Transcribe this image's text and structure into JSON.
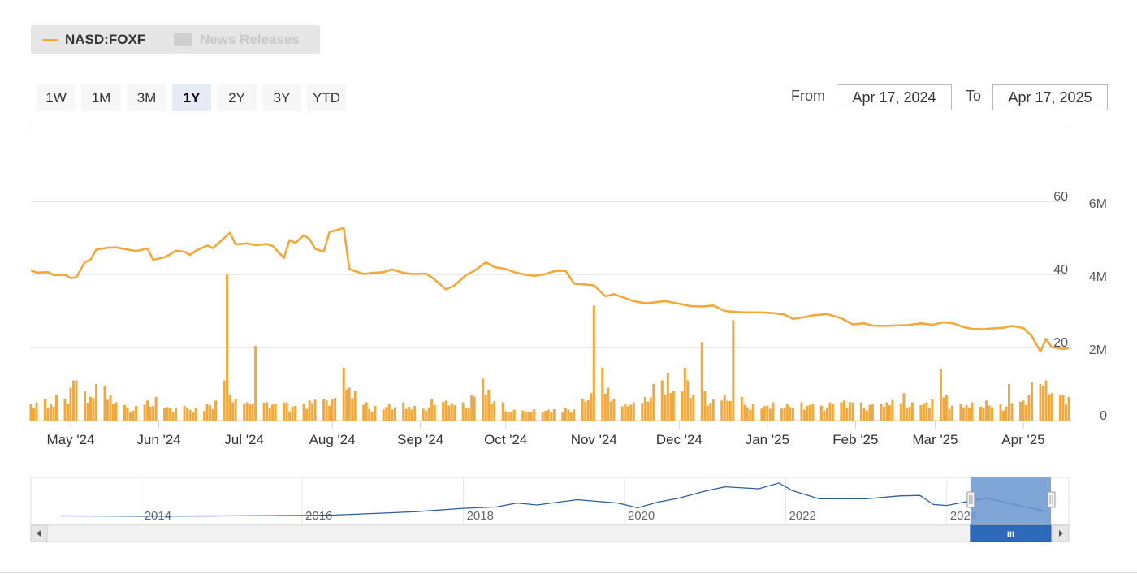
{
  "legend": {
    "series_label": "NASD:FOXF",
    "news_label": "News Releases",
    "series_color": "#f5a83a",
    "news_color": "#cccccc"
  },
  "range_selector": {
    "buttons": [
      "1W",
      "1M",
      "3M",
      "1Y",
      "2Y",
      "3Y",
      "YTD"
    ],
    "selected": "1Y",
    "from_label": "From",
    "to_label": "To",
    "from_value": "Apr 17, 2024",
    "to_value": "Apr 17, 2025"
  },
  "navigator": {
    "year_labels": [
      "2014",
      "2016",
      "2018",
      "2020",
      "2022",
      "2024"
    ],
    "handle_glyph": "III",
    "line_color": "#2c5e9e",
    "mask_color": "#6a96d0"
  },
  "chart_data": {
    "type": "line",
    "title": "",
    "series": [
      {
        "name": "NASD:FOXF",
        "type": "line",
        "axis": "price"
      },
      {
        "name": "Volume",
        "type": "bar",
        "axis": "volume"
      }
    ],
    "price_axis": {
      "ticks": [
        "20",
        "40",
        "60"
      ],
      "range": [
        0,
        60
      ]
    },
    "volume_axis": {
      "ticks": [
        "0",
        "2M",
        "4M",
        "6M"
      ],
      "range": [
        0,
        6000000
      ]
    },
    "x_ticks": [
      "May '24",
      "Jun '24",
      "Jul '24",
      "Aug '24",
      "Sep '24",
      "Oct '24",
      "Nov '24",
      "Dec '24",
      "Jan '25",
      "Feb '25",
      "Mar '25",
      "Apr '25"
    ],
    "price_points": [
      [
        "2024-04-17",
        41.1
      ],
      [
        "2024-04-19",
        40.5
      ],
      [
        "2024-04-23",
        40.6
      ],
      [
        "2024-04-25",
        39.8
      ],
      [
        "2024-04-29",
        39.9
      ],
      [
        "2024-05-01",
        39.0
      ],
      [
        "2024-05-03",
        39.2
      ],
      [
        "2024-05-06",
        43.4
      ],
      [
        "2024-05-08",
        44.0
      ],
      [
        "2024-05-10",
        46.8
      ],
      [
        "2024-05-14",
        47.3
      ],
      [
        "2024-05-17",
        47.4
      ],
      [
        "2024-05-21",
        46.8
      ],
      [
        "2024-05-24",
        46.4
      ],
      [
        "2024-05-28",
        47.1
      ],
      [
        "2024-05-30",
        44.0
      ],
      [
        "2024-06-03",
        44.7
      ],
      [
        "2024-06-05",
        45.5
      ],
      [
        "2024-06-07",
        46.5
      ],
      [
        "2024-06-10",
        46.2
      ],
      [
        "2024-06-12",
        45.3
      ],
      [
        "2024-06-14",
        46.5
      ],
      [
        "2024-06-18",
        47.9
      ],
      [
        "2024-06-20",
        47.2
      ],
      [
        "2024-06-24",
        50.0
      ],
      [
        "2024-06-26",
        51.4
      ],
      [
        "2024-06-28",
        48.2
      ],
      [
        "2024-07-02",
        48.5
      ],
      [
        "2024-07-05",
        48.0
      ],
      [
        "2024-07-09",
        48.3
      ],
      [
        "2024-07-11",
        47.8
      ],
      [
        "2024-07-15",
        44.5
      ],
      [
        "2024-07-17",
        49.4
      ],
      [
        "2024-07-19",
        48.6
      ],
      [
        "2024-07-22",
        50.7
      ],
      [
        "2024-07-24",
        49.7
      ],
      [
        "2024-07-26",
        47.0
      ],
      [
        "2024-07-29",
        46.2
      ],
      [
        "2024-07-31",
        51.6
      ],
      [
        "2024-08-02",
        52.0
      ],
      [
        "2024-08-05",
        52.7
      ],
      [
        "2024-08-07",
        41.5
      ],
      [
        "2024-08-09",
        40.9
      ],
      [
        "2024-08-12",
        40.1
      ],
      [
        "2024-08-15",
        40.4
      ],
      [
        "2024-08-19",
        40.6
      ],
      [
        "2024-08-22",
        41.4
      ],
      [
        "2024-08-26",
        40.4
      ],
      [
        "2024-08-29",
        40.1
      ],
      [
        "2024-09-03",
        40.2
      ],
      [
        "2024-09-06",
        38.6
      ],
      [
        "2024-09-10",
        35.9
      ],
      [
        "2024-09-13",
        37.0
      ],
      [
        "2024-09-17",
        39.8
      ],
      [
        "2024-09-20",
        41.0
      ],
      [
        "2024-09-24",
        43.3
      ],
      [
        "2024-09-27",
        42.0
      ],
      [
        "2024-10-01",
        41.5
      ],
      [
        "2024-10-04",
        40.6
      ],
      [
        "2024-10-08",
        39.9
      ],
      [
        "2024-10-11",
        39.6
      ],
      [
        "2024-10-15",
        40.1
      ],
      [
        "2024-10-18",
        40.9
      ],
      [
        "2024-10-22",
        41.0
      ],
      [
        "2024-10-25",
        37.5
      ],
      [
        "2024-10-29",
        37.2
      ],
      [
        "2024-11-01",
        37.0
      ],
      [
        "2024-11-05",
        34.0
      ],
      [
        "2024-11-08",
        34.6
      ],
      [
        "2024-11-12",
        33.5
      ],
      [
        "2024-11-15",
        32.7
      ],
      [
        "2024-11-19",
        32.1
      ],
      [
        "2024-11-22",
        32.3
      ],
      [
        "2024-11-26",
        32.7
      ],
      [
        "2024-12-02",
        31.8
      ],
      [
        "2024-12-05",
        31.3
      ],
      [
        "2024-12-09",
        31.2
      ],
      [
        "2024-12-13",
        31.5
      ],
      [
        "2024-12-17",
        30.0
      ],
      [
        "2024-12-20",
        29.8
      ],
      [
        "2024-12-24",
        29.6
      ],
      [
        "2024-12-30",
        29.6
      ],
      [
        "2025-01-03",
        29.4
      ],
      [
        "2025-01-07",
        29.0
      ],
      [
        "2025-01-10",
        27.8
      ],
      [
        "2025-01-14",
        28.3
      ],
      [
        "2025-01-17",
        28.8
      ],
      [
        "2025-01-22",
        29.1
      ],
      [
        "2025-01-27",
        28.0
      ],
      [
        "2025-01-31",
        26.3
      ],
      [
        "2025-02-04",
        26.6
      ],
      [
        "2025-02-07",
        26.0
      ],
      [
        "2025-02-11",
        25.9
      ],
      [
        "2025-02-14",
        26.0
      ],
      [
        "2025-02-19",
        26.1
      ],
      [
        "2025-02-24",
        26.6
      ],
      [
        "2025-02-28",
        26.2
      ],
      [
        "2025-03-04",
        26.9
      ],
      [
        "2025-03-07",
        26.7
      ],
      [
        "2025-03-11",
        25.6
      ],
      [
        "2025-03-14",
        25.1
      ],
      [
        "2025-03-18",
        25.0
      ],
      [
        "2025-03-21",
        25.2
      ],
      [
        "2025-03-25",
        25.4
      ],
      [
        "2025-03-28",
        25.9
      ],
      [
        "2025-04-01",
        25.3
      ],
      [
        "2025-04-04",
        23.1
      ],
      [
        "2025-04-07",
        18.9
      ],
      [
        "2025-04-09",
        22.3
      ],
      [
        "2025-04-11",
        20.1
      ],
      [
        "2025-04-15",
        19.6
      ],
      [
        "2025-04-17",
        19.8
      ]
    ],
    "volume_points": [
      [
        "2024-04-17",
        0.45
      ],
      [
        "2024-04-19",
        0.5
      ],
      [
        "2024-04-22",
        0.6
      ],
      [
        "2024-04-24",
        0.45
      ],
      [
        "2024-04-26",
        0.7
      ],
      [
        "2024-04-29",
        0.6
      ],
      [
        "2024-05-01",
        0.9
      ],
      [
        "2024-05-02",
        1.1
      ],
      [
        "2024-05-03",
        1.1
      ],
      [
        "2024-05-06",
        0.8
      ],
      [
        "2024-05-08",
        0.65
      ],
      [
        "2024-05-10",
        1.0
      ],
      [
        "2024-05-13",
        0.95
      ],
      [
        "2024-05-15",
        0.7
      ],
      [
        "2024-05-17",
        0.5
      ],
      [
        "2024-05-21",
        0.35
      ],
      [
        "2024-05-24",
        0.4
      ],
      [
        "2024-05-28",
        0.55
      ],
      [
        "2024-05-31",
        0.65
      ],
      [
        "2024-06-05",
        0.35
      ],
      [
        "2024-06-10",
        0.4
      ],
      [
        "2024-06-14",
        0.35
      ],
      [
        "2024-06-18",
        0.45
      ],
      [
        "2024-06-21",
        0.55
      ],
      [
        "2024-06-24",
        1.1
      ],
      [
        "2024-06-25",
        4.0
      ],
      [
        "2024-06-26",
        0.7
      ],
      [
        "2024-06-28",
        0.6
      ],
      [
        "2024-07-02",
        0.5
      ],
      [
        "2024-07-05",
        2.05
      ],
      [
        "2024-07-09",
        0.5
      ],
      [
        "2024-07-12",
        0.45
      ],
      [
        "2024-07-16",
        0.5
      ],
      [
        "2024-07-19",
        0.4
      ],
      [
        "2024-07-24",
        0.55
      ],
      [
        "2024-07-29",
        0.6
      ],
      [
        "2024-08-01",
        0.6
      ],
      [
        "2024-08-05",
        1.45
      ],
      [
        "2024-08-07",
        0.9
      ],
      [
        "2024-08-09",
        0.8
      ],
      [
        "2024-08-13",
        0.5
      ],
      [
        "2024-08-16",
        0.4
      ],
      [
        "2024-08-21",
        0.45
      ],
      [
        "2024-08-26",
        0.5
      ],
      [
        "2024-08-30",
        0.4
      ],
      [
        "2024-09-05",
        0.6
      ],
      [
        "2024-09-10",
        0.55
      ],
      [
        "2024-09-16",
        0.5
      ],
      [
        "2024-09-19",
        0.7
      ],
      [
        "2024-09-23",
        1.15
      ],
      [
        "2024-09-25",
        0.85
      ],
      [
        "2024-09-30",
        0.5
      ],
      [
        "2024-10-04",
        0.3
      ],
      [
        "2024-10-10",
        0.25
      ],
      [
        "2024-10-16",
        0.3
      ],
      [
        "2024-10-22",
        0.35
      ],
      [
        "2024-10-28",
        0.6
      ],
      [
        "2024-10-31",
        0.75
      ],
      [
        "2024-11-01",
        3.15
      ],
      [
        "2024-11-04",
        1.45
      ],
      [
        "2024-11-06",
        0.9
      ],
      [
        "2024-11-08",
        0.6
      ],
      [
        "2024-11-12",
        0.45
      ],
      [
        "2024-11-15",
        0.5
      ],
      [
        "2024-11-19",
        0.65
      ],
      [
        "2024-11-22",
        1.0
      ],
      [
        "2024-11-25",
        1.1
      ],
      [
        "2024-11-27",
        1.3
      ],
      [
        "2024-11-29",
        0.8
      ],
      [
        "2024-12-03",
        1.45
      ],
      [
        "2024-12-04",
        1.1
      ],
      [
        "2024-12-06",
        0.7
      ],
      [
        "2024-12-09",
        2.15
      ],
      [
        "2024-12-10",
        0.8
      ],
      [
        "2024-12-13",
        0.6
      ],
      [
        "2024-12-17",
        0.7
      ],
      [
        "2024-12-20",
        2.75
      ],
      [
        "2024-12-23",
        0.65
      ],
      [
        "2024-12-27",
        0.45
      ],
      [
        "2025-01-03",
        0.5
      ],
      [
        "2025-01-08",
        0.45
      ],
      [
        "2025-01-13",
        0.5
      ],
      [
        "2025-01-17",
        0.45
      ],
      [
        "2025-01-23",
        0.5
      ],
      [
        "2025-01-28",
        0.55
      ],
      [
        "2025-02-03",
        0.5
      ],
      [
        "2025-02-07",
        0.45
      ],
      [
        "2025-02-12",
        0.5
      ],
      [
        "2025-02-18",
        0.75
      ],
      [
        "2025-02-21",
        0.5
      ],
      [
        "2025-02-26",
        0.5
      ],
      [
        "2025-02-28",
        0.6
      ],
      [
        "2025-03-03",
        1.4
      ],
      [
        "2025-03-05",
        0.7
      ],
      [
        "2025-03-10",
        0.45
      ],
      [
        "2025-03-14",
        0.5
      ],
      [
        "2025-03-19",
        0.55
      ],
      [
        "2025-03-24",
        0.45
      ],
      [
        "2025-03-27",
        1.0
      ],
      [
        "2025-04-01",
        0.55
      ],
      [
        "2025-04-03",
        0.7
      ],
      [
        "2025-04-04",
        1.05
      ],
      [
        "2025-04-07",
        1.0
      ],
      [
        "2025-04-08",
        0.95
      ],
      [
        "2025-04-09",
        1.1
      ],
      [
        "2025-04-11",
        0.75
      ],
      [
        "2025-04-15",
        0.7
      ],
      [
        "2025-04-17",
        0.65
      ]
    ],
    "navigator_points": [
      [
        "2013-01",
        11
      ],
      [
        "2014-01",
        10.5
      ],
      [
        "2015-01",
        11
      ],
      [
        "2016-01",
        12
      ],
      [
        "2016-06",
        13
      ],
      [
        "2017-01",
        17
      ],
      [
        "2017-06",
        20
      ],
      [
        "2018-01",
        27
      ],
      [
        "2018-06",
        30
      ],
      [
        "2018-09",
        38
      ],
      [
        "2018-12",
        34
      ],
      [
        "2019-06",
        45
      ],
      [
        "2019-12",
        38
      ],
      [
        "2020-03",
        28
      ],
      [
        "2020-06",
        40
      ],
      [
        "2020-09",
        48
      ],
      [
        "2021-01",
        63
      ],
      [
        "2021-04",
        72
      ],
      [
        "2021-09",
        68
      ],
      [
        "2021-12",
        80
      ],
      [
        "2022-02",
        64
      ],
      [
        "2022-06",
        47
      ],
      [
        "2022-10",
        47
      ],
      [
        "2023-01",
        47
      ],
      [
        "2023-06",
        53
      ],
      [
        "2023-09",
        54
      ],
      [
        "2023-11",
        35
      ],
      [
        "2024-01",
        33
      ],
      [
        "2024-04",
        41
      ],
      [
        "2024-07",
        48
      ],
      [
        "2024-10",
        38
      ],
      [
        "2025-01",
        29
      ],
      [
        "2025-04",
        20
      ]
    ]
  }
}
